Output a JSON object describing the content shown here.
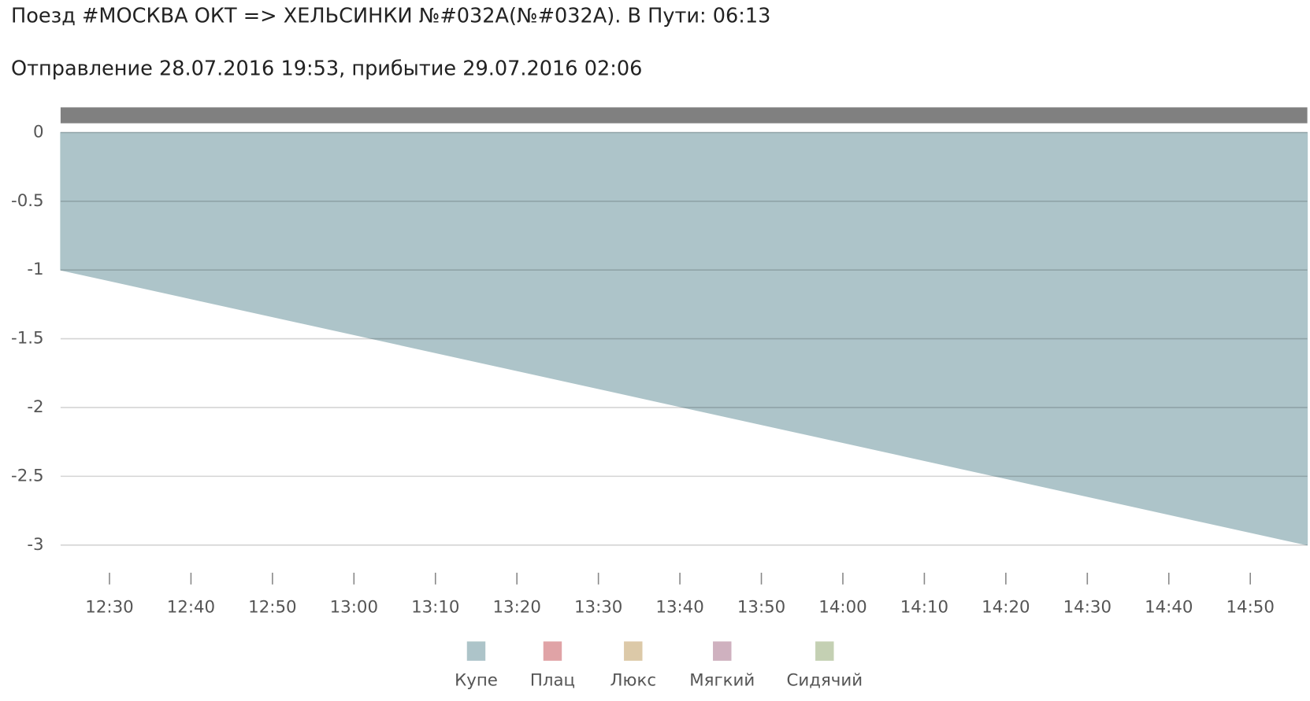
{
  "chart_data": {
    "type": "area",
    "title": "Поезд #МОСКВА ОКТ => ХЕЛЬСИНКИ №#032А(№#032А). В Пути: 06:13",
    "subtitle": "Отправление 28.07.2016 19:53, прибытие 29.07.2016 02:06",
    "x": [
      744,
      897
    ],
    "xlim": [
      744,
      897
    ],
    "xticks": [
      {
        "value": 750,
        "label": "12:30"
      },
      {
        "value": 760,
        "label": "12:40"
      },
      {
        "value": 770,
        "label": "12:50"
      },
      {
        "value": 780,
        "label": "13:00"
      },
      {
        "value": 790,
        "label": "13:10"
      },
      {
        "value": 800,
        "label": "13:20"
      },
      {
        "value": 810,
        "label": "13:30"
      },
      {
        "value": 820,
        "label": "13:40"
      },
      {
        "value": 830,
        "label": "13:50"
      },
      {
        "value": 840,
        "label": "14:00"
      },
      {
        "value": 850,
        "label": "14:10"
      },
      {
        "value": 860,
        "label": "14:20"
      },
      {
        "value": 870,
        "label": "14:30"
      },
      {
        "value": 880,
        "label": "14:40"
      },
      {
        "value": 890,
        "label": "14:50"
      }
    ],
    "ylim": [
      -3,
      0
    ],
    "yticks": [
      0,
      -0.5,
      -1,
      -1.5,
      -2,
      -2.5,
      -3
    ],
    "grid": true,
    "legend": "bottom",
    "series": [
      {
        "name": "Купе",
        "color": "#adc4c9",
        "values": [
          -1,
          -3
        ]
      },
      {
        "name": "Плац",
        "color": "#e0a3a6",
        "values": [
          null,
          null
        ]
      },
      {
        "name": "Люкс",
        "color": "#dcc9a8",
        "values": [
          null,
          null
        ]
      },
      {
        "name": "Мягкий",
        "color": "#cfb1bf",
        "values": [
          null,
          null
        ]
      },
      {
        "name": "Сидячий",
        "color": "#c4d0b3",
        "values": [
          null,
          null
        ]
      }
    ]
  }
}
